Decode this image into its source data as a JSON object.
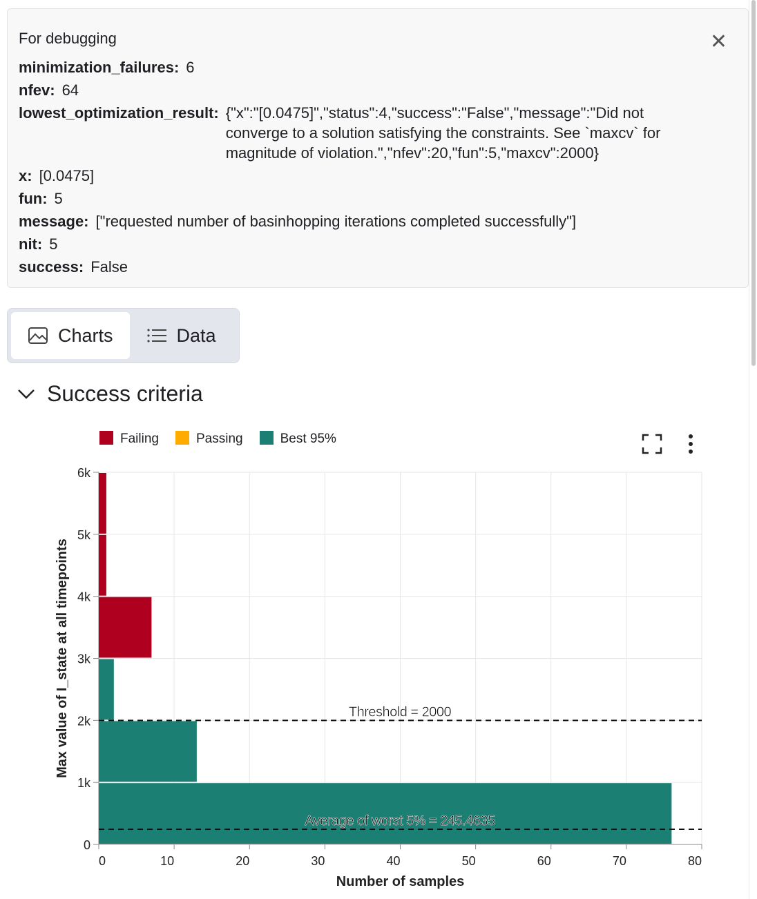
{
  "debug": {
    "title": "For debugging",
    "rows": [
      {
        "k": "minimization_failures:",
        "v": "6"
      },
      {
        "k": "nfev:",
        "v": "64"
      },
      {
        "k": "lowest_optimization_result:",
        "v": "{\"x\":\"[0.0475]\",\"status\":4,\"success\":\"False\",\"message\":\"Did not converge to a solution satisfying the constraints. See `maxcv` for magnitude of violation.\",\"nfev\":20,\"fun\":5,\"maxcv\":2000}"
      },
      {
        "k": "x:",
        "v": "[0.0475]"
      },
      {
        "k": "fun:",
        "v": "5"
      },
      {
        "k": "message:",
        "v": "[\"requested number of basinhopping iterations completed successfully\"]"
      },
      {
        "k": "nit:",
        "v": "5"
      },
      {
        "k": "success:",
        "v": "False"
      }
    ]
  },
  "tabs": [
    {
      "label": "Charts"
    },
    {
      "label": "Data"
    }
  ],
  "section": {
    "title": "Success criteria"
  },
  "chart_data": {
    "type": "bar",
    "orientation": "horizontal",
    "xlabel": "Number of samples",
    "ylabel": "Max value of I_state at all timepoints",
    "xlim": [
      0,
      80
    ],
    "ylim": [
      0,
      6000
    ],
    "xticks": [
      "0",
      "10",
      "20",
      "30",
      "40",
      "50",
      "60",
      "70",
      "80"
    ],
    "yticks": [
      "0",
      "1k",
      "2k",
      "3k",
      "4k",
      "5k",
      "6k"
    ],
    "legend": [
      {
        "name": "Failing",
        "color": "#b00020"
      },
      {
        "name": "Passing",
        "color": "#ffab00"
      },
      {
        "name": "Best 95%",
        "color": "#1b8073"
      }
    ],
    "bins": [
      {
        "from": 0,
        "to": 1000,
        "count": 76,
        "series": "Best 95%"
      },
      {
        "from": 1000,
        "to": 2000,
        "count": 13,
        "series": "Best 95%"
      },
      {
        "from": 2000,
        "to": 3000,
        "count": 2,
        "series": "Best 95%"
      },
      {
        "from": 3000,
        "to": 4000,
        "count": 7,
        "series": "Failing"
      },
      {
        "from": 4000,
        "to": 5000,
        "count": 1,
        "series": "Failing"
      },
      {
        "from": 5000,
        "to": 6000,
        "count": 1,
        "series": "Failing"
      }
    ],
    "rules": [
      {
        "y": 2000,
        "label": "Threshold = 2000"
      },
      {
        "y": 245.4635,
        "label": "Average of worst 5% = 245.4635"
      }
    ]
  }
}
